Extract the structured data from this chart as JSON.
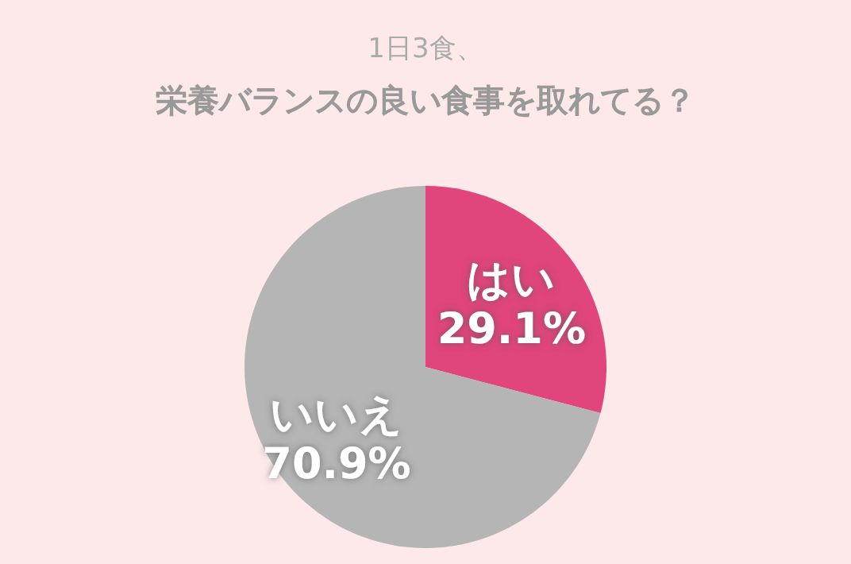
{
  "chart_data": {
    "type": "pie",
    "title": "1日3食、",
    "subtitle": "栄養バランスの良い食事を取れてる？",
    "categories": [
      "はい",
      "いいえ"
    ],
    "values": [
      29.1,
      70.9
    ],
    "colors": [
      "#e0457b",
      "#b5b5b5"
    ],
    "value_labels": [
      "29.1%",
      "70.9%"
    ],
    "legend": false
  }
}
